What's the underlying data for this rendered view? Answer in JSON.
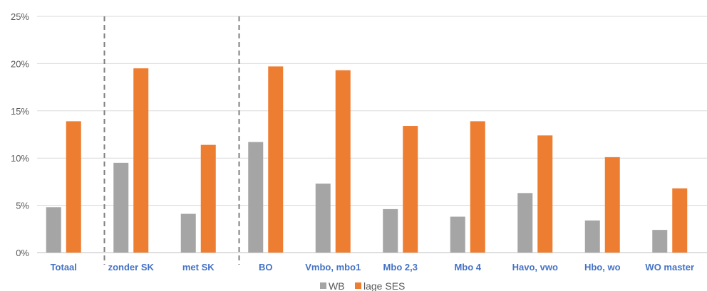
{
  "chart_data": {
    "type": "bar",
    "categories": [
      "Totaal",
      "zonder SK",
      "met SK",
      "BO",
      "Vmbo, mbo1",
      "Mbo 2,3",
      "Mbo 4",
      "Havo, vwo",
      "Hbo, wo",
      "WO master"
    ],
    "series": [
      {
        "name": "WB",
        "color": "#a5a5a5",
        "values": [
          4.8,
          9.5,
          4.1,
          11.7,
          7.3,
          4.6,
          3.8,
          6.3,
          3.4,
          2.4
        ]
      },
      {
        "name": "lage SES",
        "color": "#ed7d31",
        "values": [
          13.9,
          19.5,
          11.4,
          19.7,
          19.3,
          13.4,
          13.9,
          12.4,
          10.1,
          6.8
        ]
      }
    ],
    "y_ticks": [
      "0%",
      "5%",
      "10%",
      "15%",
      "20%",
      "25%"
    ],
    "ylim": [
      0,
      25
    ],
    "gridlines": true,
    "legend_position": "bottom",
    "dashed_separators_after": [
      "Totaal",
      "met SK"
    ]
  }
}
